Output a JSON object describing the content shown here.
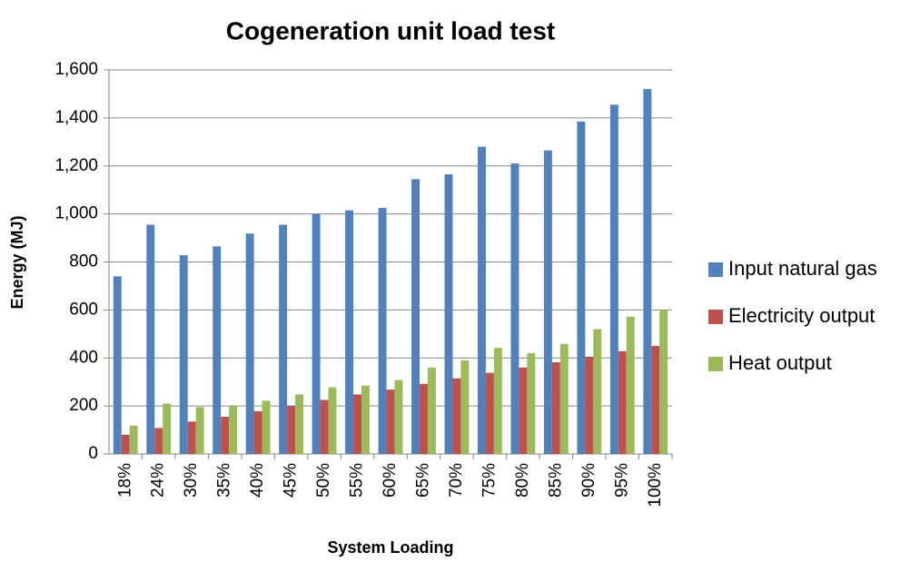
{
  "chart_data": {
    "type": "bar",
    "title": "Cogeneration unit load test",
    "x_label": "System Loading",
    "y_label": "Energy (MJ)",
    "categories": [
      "18%",
      "24%",
      "30%",
      "35%",
      "40%",
      "45%",
      "50%",
      "55%",
      "60%",
      "65%",
      "70%",
      "75%",
      "80%",
      "85%",
      "90%",
      "95%",
      "100%"
    ],
    "series": [
      {
        "name": "Input natural gas",
        "color": "#4f81bd",
        "values": [
          740,
          955,
          828,
          865,
          918,
          955,
          1000,
          1015,
          1025,
          1145,
          1165,
          1280,
          1210,
          1265,
          1385,
          1455,
          1520
        ]
      },
      {
        "name": "Electricity output",
        "color": "#c0504d",
        "values": [
          80,
          108,
          135,
          155,
          178,
          200,
          225,
          248,
          268,
          292,
          315,
          338,
          360,
          382,
          405,
          428,
          450
        ]
      },
      {
        "name": "Heat output",
        "color": "#9bbb59",
        "values": [
          118,
          210,
          195,
          200,
          222,
          248,
          278,
          285,
          308,
          360,
          390,
          442,
          420,
          458,
          520,
          572,
          600
        ]
      }
    ],
    "ylim": [
      0,
      1600
    ],
    "yticks": [
      0,
      200,
      400,
      600,
      800,
      {
        "value": 1000,
        "label": "1,000"
      },
      {
        "value": 1200,
        "label": "1,200"
      },
      {
        "value": 1400,
        "label": "1,400"
      },
      {
        "value": 1600,
        "label": "1,600"
      }
    ],
    "grid": true,
    "legend": "right"
  }
}
